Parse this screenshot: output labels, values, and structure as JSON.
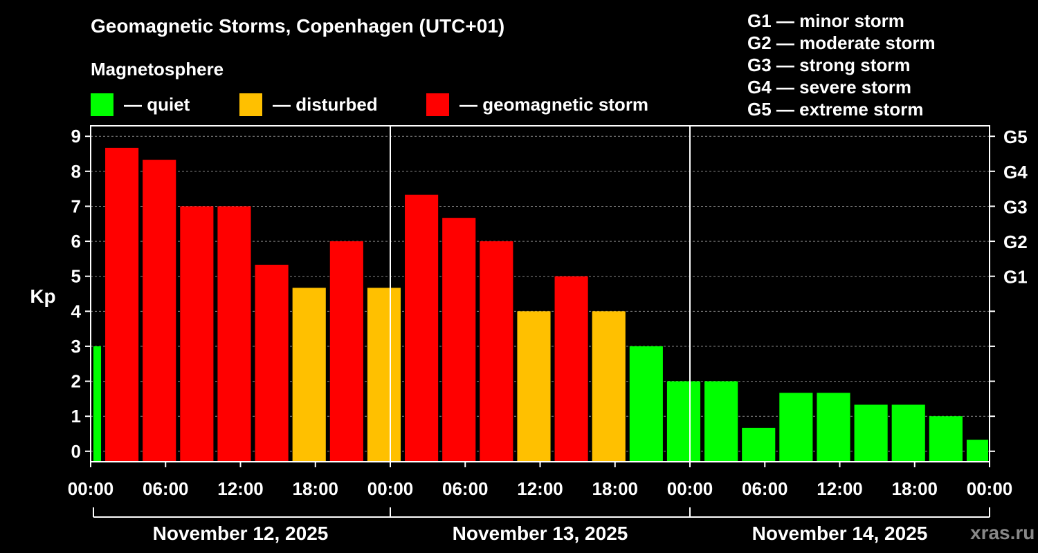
{
  "header": {
    "title": "Geomagnetic Storms, Copenhagen (UTC+01)",
    "subtitle": "Magnetosphere"
  },
  "legend": [
    {
      "label": "— quiet",
      "color": "#00ff00"
    },
    {
      "label": "— disturbed",
      "color": "#ffc000"
    },
    {
      "label": "— geomagnetic storm",
      "color": "#ff0000"
    }
  ],
  "storm_scale": [
    "G1 — minor storm",
    "G2 — moderate storm",
    "G3 — strong storm",
    "G4 — severe storm",
    "G5 — extreme storm"
  ],
  "watermark": "xras.ru",
  "colors": {
    "quiet": "#00ff00",
    "disturbed": "#ffc000",
    "storm": "#ff0000",
    "background": "#000000",
    "axis": "#ffffff"
  },
  "chart_data": {
    "type": "bar",
    "ylabel": "Kp",
    "ylim": [
      -0.3,
      9.3
    ],
    "yticks": [
      "0",
      "1",
      "2",
      "3",
      "4",
      "5",
      "6",
      "7",
      "8",
      "9"
    ],
    "right_ticks": [
      {
        "kp": 5,
        "label": "G1"
      },
      {
        "kp": 6,
        "label": "G2"
      },
      {
        "kp": 7,
        "label": "G3"
      },
      {
        "kp": 8,
        "label": "G4"
      },
      {
        "kp": 9,
        "label": "G5"
      }
    ],
    "x_hours_range": [
      0,
      72
    ],
    "xtick_labels": [
      "00:00",
      "06:00",
      "12:00",
      "18:00",
      "00:00",
      "06:00",
      "12:00",
      "18:00",
      "00:00",
      "06:00",
      "12:00",
      "18:00",
      "00:00"
    ],
    "days": [
      "November 12, 2025",
      "November 13, 2025",
      "November 14, 2025"
    ],
    "bars": [
      {
        "start_hour": 0,
        "end_hour": 1,
        "kp": 3.0,
        "level": "quiet"
      },
      {
        "start_hour": 1,
        "end_hour": 4,
        "kp": 8.67,
        "level": "storm"
      },
      {
        "start_hour": 4,
        "end_hour": 7,
        "kp": 8.33,
        "level": "storm"
      },
      {
        "start_hour": 7,
        "end_hour": 10,
        "kp": 7.0,
        "level": "storm"
      },
      {
        "start_hour": 10,
        "end_hour": 13,
        "kp": 7.0,
        "level": "storm"
      },
      {
        "start_hour": 13,
        "end_hour": 16,
        "kp": 5.33,
        "level": "storm"
      },
      {
        "start_hour": 16,
        "end_hour": 19,
        "kp": 4.67,
        "level": "disturbed"
      },
      {
        "start_hour": 19,
        "end_hour": 22,
        "kp": 6.0,
        "level": "storm"
      },
      {
        "start_hour": 22,
        "end_hour": 25,
        "kp": 4.67,
        "level": "disturbed"
      },
      {
        "start_hour": 25,
        "end_hour": 28,
        "kp": 7.33,
        "level": "storm"
      },
      {
        "start_hour": 28,
        "end_hour": 31,
        "kp": 6.67,
        "level": "storm"
      },
      {
        "start_hour": 31,
        "end_hour": 34,
        "kp": 6.0,
        "level": "storm"
      },
      {
        "start_hour": 34,
        "end_hour": 37,
        "kp": 4.0,
        "level": "disturbed"
      },
      {
        "start_hour": 37,
        "end_hour": 40,
        "kp": 5.0,
        "level": "storm"
      },
      {
        "start_hour": 40,
        "end_hour": 43,
        "kp": 4.0,
        "level": "disturbed"
      },
      {
        "start_hour": 43,
        "end_hour": 46,
        "kp": 3.0,
        "level": "quiet"
      },
      {
        "start_hour": 46,
        "end_hour": 49,
        "kp": 2.0,
        "level": "quiet"
      },
      {
        "start_hour": 49,
        "end_hour": 52,
        "kp": 2.0,
        "level": "quiet"
      },
      {
        "start_hour": 52,
        "end_hour": 55,
        "kp": 0.67,
        "level": "quiet"
      },
      {
        "start_hour": 55,
        "end_hour": 58,
        "kp": 1.67,
        "level": "quiet"
      },
      {
        "start_hour": 58,
        "end_hour": 61,
        "kp": 1.67,
        "level": "quiet"
      },
      {
        "start_hour": 61,
        "end_hour": 64,
        "kp": 1.33,
        "level": "quiet"
      },
      {
        "start_hour": 64,
        "end_hour": 67,
        "kp": 1.33,
        "level": "quiet"
      },
      {
        "start_hour": 67,
        "end_hour": 70,
        "kp": 1.0,
        "level": "quiet"
      },
      {
        "start_hour": 70,
        "end_hour": 72,
        "kp": 0.33,
        "level": "quiet"
      }
    ]
  }
}
